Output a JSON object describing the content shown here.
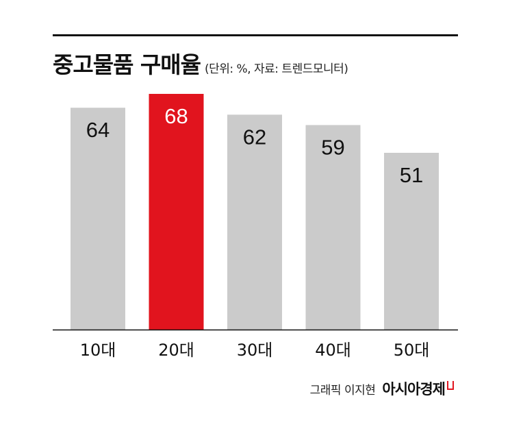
{
  "chart_data": {
    "type": "bar",
    "title": "중고물품 구매율",
    "subtitle": "(단위: %, 자료: 트렌드모니터)",
    "categories": [
      "10대",
      "20대",
      "30대",
      "40대",
      "50대"
    ],
    "values": [
      64,
      68,
      62,
      59,
      51
    ],
    "value_labels": [
      "64",
      "68",
      "62",
      "59",
      "51"
    ],
    "highlight_index": 1,
    "ylim": [
      0,
      68
    ],
    "grid": false,
    "legend": "none",
    "colors": {
      "bar": "#cbcbcb",
      "highlight": "#e1141e",
      "label": "#111111",
      "highlight_label": "#ffffff",
      "axis": "#111111"
    }
  },
  "credit": {
    "graphic": "그래픽 이지현",
    "brand": "아시아경제"
  }
}
